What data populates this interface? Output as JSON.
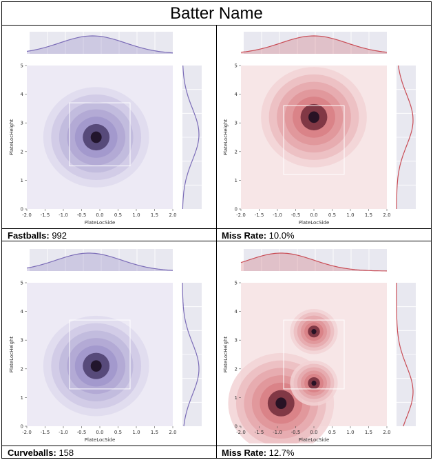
{
  "title": "Batter Name",
  "captions": [
    {
      "label": "Fastballs:",
      "value": "992"
    },
    {
      "label": "Miss Rate:",
      "value": "10.0%"
    },
    {
      "label": "Curveballs:",
      "value": "158"
    },
    {
      "label": "Miss Rate:",
      "value": "12.7%"
    }
  ],
  "chart_data": [
    {
      "type": "heatmap",
      "xlabel": "PlateLocSide",
      "ylabel": "PlateLocHeight",
      "xlim": [
        -2.0,
        2.0
      ],
      "ylim": [
        0,
        5
      ],
      "xticks": [
        "-2.0",
        "-1.5",
        "-1.0",
        "-0.5",
        "0.0",
        "0.5",
        "1.0",
        "1.5",
        "2.0"
      ],
      "yticks": [
        "0",
        "1",
        "2",
        "3",
        "4",
        "5"
      ],
      "strike_zone": {
        "x": [
          -0.83,
          0.83
        ],
        "y": [
          1.5,
          3.7
        ]
      },
      "color": "#7b6cb7",
      "density_peaks": [
        {
          "x": -0.1,
          "y": 2.5
        }
      ],
      "marginal_x_peak": -0.2,
      "marginal_y_peak": 2.6
    },
    {
      "type": "heatmap",
      "xlabel": "PlateLocSide",
      "ylabel": "PlateLocHeight",
      "xlim": [
        -2.0,
        2.0
      ],
      "ylim": [
        0,
        5
      ],
      "xticks": [
        "-2.0",
        "-1.5",
        "-1.0",
        "-0.5",
        "0.0",
        "0.5",
        "1.0",
        "1.5",
        "2.0"
      ],
      "yticks": [
        "0",
        "1",
        "2",
        "3",
        "4",
        "5"
      ],
      "strike_zone": {
        "x": [
          -0.83,
          0.83
        ],
        "y": [
          1.2,
          3.6
        ]
      },
      "color": "#c94c55",
      "density_peaks": [
        {
          "x": 0.0,
          "y": 3.2
        }
      ],
      "marginal_x_peak": 0.0,
      "marginal_y_peak": 3.1
    },
    {
      "type": "heatmap",
      "xlabel": "PlateLocSide",
      "ylabel": "PlateLocHeight",
      "xlim": [
        -2.0,
        2.0
      ],
      "ylim": [
        0,
        5
      ],
      "xticks": [
        "-2.0",
        "-1.5",
        "-1.0",
        "-0.5",
        "0.0",
        "0.5",
        "1.0",
        "1.5",
        "2.0"
      ],
      "yticks": [
        "0",
        "1",
        "2",
        "3",
        "4",
        "5"
      ],
      "strike_zone": {
        "x": [
          -0.83,
          0.83
        ],
        "y": [
          1.3,
          3.7
        ]
      },
      "color": "#7b6cb7",
      "density_peaks": [
        {
          "x": -0.1,
          "y": 2.1
        }
      ],
      "marginal_x_peak": -0.3,
      "marginal_y_peak": 2.0
    },
    {
      "type": "heatmap",
      "xlabel": "PlateLocSide",
      "ylabel": "PlateLocHeight",
      "xlim": [
        -2.0,
        2.0
      ],
      "ylim": [
        0,
        5
      ],
      "xticks": [
        "-2.0",
        "-1.5",
        "-1.0",
        "-0.5",
        "0.0",
        "0.5",
        "1.0",
        "1.5",
        "2.0"
      ],
      "yticks": [
        "0",
        "1",
        "2",
        "3",
        "4",
        "5"
      ],
      "strike_zone": {
        "x": [
          -0.83,
          0.83
        ],
        "y": [
          1.3,
          3.7
        ]
      },
      "color": "#c94c55",
      "density_peaks": [
        {
          "x": -0.9,
          "y": 0.8
        },
        {
          "x": 0.0,
          "y": 1.5
        },
        {
          "x": 0.0,
          "y": 3.3
        }
      ],
      "marginal_x_peak": -0.9,
      "marginal_y_peak": 1.2
    }
  ]
}
